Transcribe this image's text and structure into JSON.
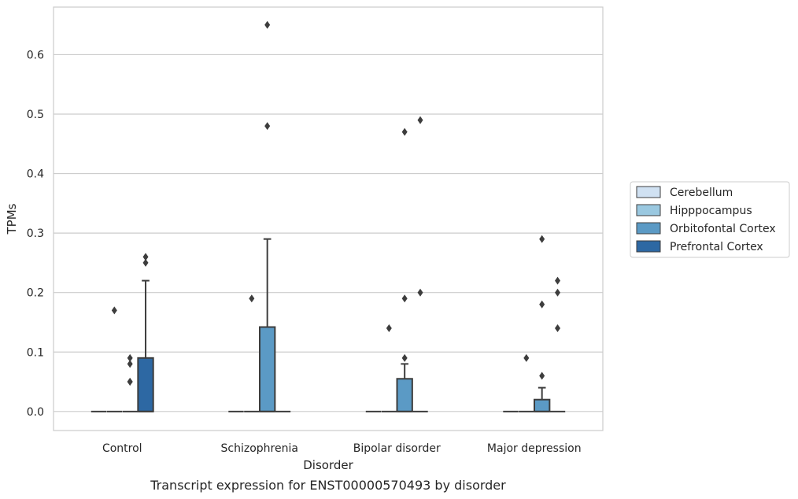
{
  "caption": "Transcript expression for ENST00000570493 by disorder",
  "chart_data": {
    "type": "box",
    "title": "",
    "xlabel": "Disorder",
    "ylabel": "TPMs",
    "ylim": [
      -0.032,
      0.68
    ],
    "yticks": [
      "0.0",
      "0.1",
      "0.2",
      "0.3",
      "0.4",
      "0.5",
      "0.6"
    ],
    "grid": "horizontal",
    "legend_position": "right",
    "categories": [
      "Control",
      "Schizophrenia",
      "Bipolar disorder",
      "Major depression"
    ],
    "series": [
      {
        "name": "Cerebellum",
        "color": "#d0e1f2",
        "boxes": [
          {
            "q1": 0,
            "median": 0,
            "q3": 0,
            "whisker_low": 0,
            "whisker_high": 0,
            "outliers": []
          },
          {
            "q1": 0,
            "median": 0,
            "q3": 0,
            "whisker_low": 0,
            "whisker_high": 0,
            "outliers": []
          },
          {
            "q1": 0,
            "median": 0,
            "q3": 0,
            "whisker_low": 0,
            "whisker_high": 0,
            "outliers": []
          },
          {
            "q1": 0,
            "median": 0,
            "q3": 0,
            "whisker_low": 0,
            "whisker_high": 0,
            "outliers": []
          }
        ]
      },
      {
        "name": "Hipppocampus",
        "color": "#9ac8e0",
        "boxes": [
          {
            "q1": 0,
            "median": 0,
            "q3": 0,
            "whisker_low": 0,
            "whisker_high": 0,
            "outliers": [
              0.17
            ]
          },
          {
            "q1": 0,
            "median": 0,
            "q3": 0,
            "whisker_low": 0,
            "whisker_high": 0,
            "outliers": [
              0.19
            ]
          },
          {
            "q1": 0,
            "median": 0,
            "q3": 0,
            "whisker_low": 0,
            "whisker_high": 0,
            "outliers": [
              0.14
            ]
          },
          {
            "q1": 0,
            "median": 0,
            "q3": 0,
            "whisker_low": 0,
            "whisker_high": 0,
            "outliers": [
              0.09
            ]
          }
        ]
      },
      {
        "name": "Orbitofontal Cortex",
        "color": "#5b9ac5",
        "boxes": [
          {
            "q1": 0,
            "median": 0,
            "q3": 0,
            "whisker_low": 0,
            "whisker_high": 0,
            "outliers": [
              0.05,
              0.09,
              0.08,
              0.05
            ]
          },
          {
            "q1": 0,
            "median": 0,
            "q3": 0.142,
            "whisker_low": 0,
            "whisker_high": 0.29,
            "outliers": [
              0.48,
              0.65
            ]
          },
          {
            "q1": 0,
            "median": 0,
            "q3": 0.055,
            "whisker_low": 0,
            "whisker_high": 0.08,
            "outliers": [
              0.47,
              0.19,
              0.09
            ]
          },
          {
            "q1": 0,
            "median": 0,
            "q3": 0.02,
            "whisker_low": 0,
            "whisker_high": 0.04,
            "outliers": [
              0.29,
              0.18,
              0.06
            ]
          }
        ]
      },
      {
        "name": "Prefrontal Cortex",
        "color": "#2d68a3",
        "boxes": [
          {
            "q1": 0,
            "median": 0,
            "q3": 0.09,
            "whisker_low": 0,
            "whisker_high": 0.22,
            "outliers": [
              0.26,
              0.25
            ]
          },
          {
            "q1": 0,
            "median": 0,
            "q3": 0,
            "whisker_low": 0,
            "whisker_high": 0,
            "outliers": []
          },
          {
            "q1": 0,
            "median": 0,
            "q3": 0,
            "whisker_low": 0,
            "whisker_high": 0,
            "outliers": [
              0.49,
              0.2
            ]
          },
          {
            "q1": 0,
            "median": 0,
            "q3": 0,
            "whisker_low": 0,
            "whisker_high": 0,
            "outliers": [
              0.22,
              0.2,
              0.14
            ]
          }
        ]
      }
    ]
  }
}
